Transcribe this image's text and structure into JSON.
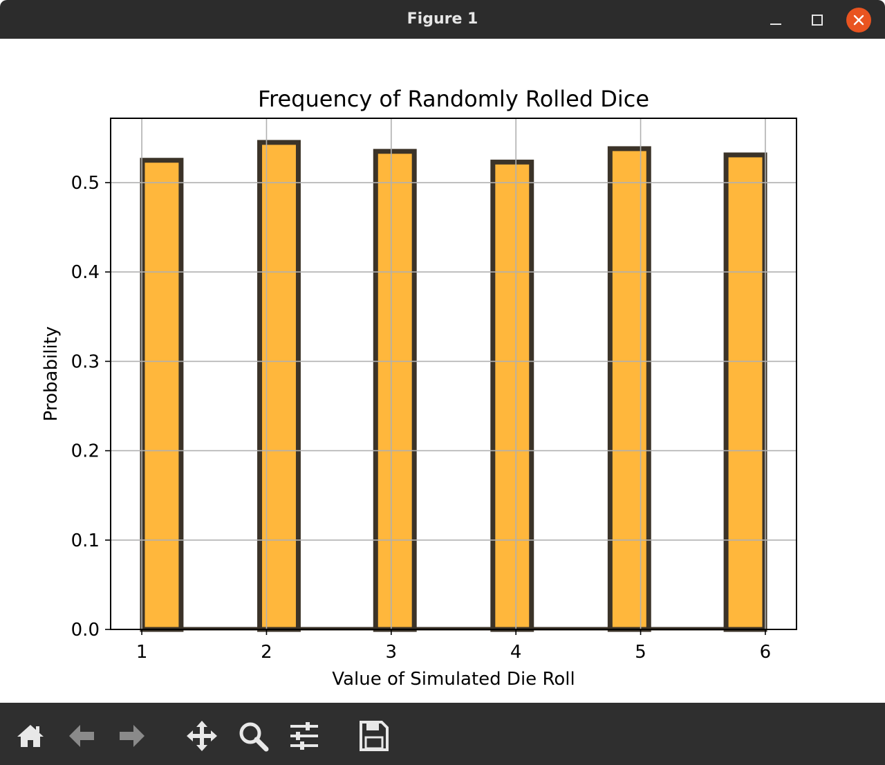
{
  "window": {
    "title": "Figure 1"
  },
  "toolbar": {
    "buttons": [
      {
        "icon": "home-icon"
      },
      {
        "icon": "back-arrow-icon"
      },
      {
        "icon": "forward-arrow-icon"
      },
      {
        "icon": "pan-move-icon"
      },
      {
        "icon": "zoom-magnifier-icon"
      },
      {
        "icon": "configure-subplots-icon"
      },
      {
        "icon": "save-floppy-icon"
      }
    ]
  },
  "colors": {
    "bar_fill": "#ffb73c",
    "bar_edge": "#3b3328",
    "grid": "#b0b0b0",
    "titlebar": "#2c2c2c",
    "toolbar": "#2f2f2f",
    "close_button": "#e95420"
  },
  "chart_data": {
    "type": "bar",
    "title": "Frequency of Randomly Rolled Dice",
    "xlabel": "Value of Simulated Die Roll",
    "ylabel": "Probability",
    "x": [
      1.16,
      2.1,
      3.03,
      3.97,
      4.91,
      5.84
    ],
    "values": [
      0.525,
      0.545,
      0.535,
      0.523,
      0.538,
      0.531
    ],
    "bin_width": 0.31,
    "xlim": [
      0.75,
      6.25
    ],
    "ylim": [
      0.0,
      0.572
    ],
    "xticks": [
      "1",
      "2",
      "3",
      "4",
      "5",
      "6"
    ],
    "yticks": [
      "0.0",
      "0.1",
      "0.2",
      "0.3",
      "0.4",
      "0.5"
    ],
    "grid": true
  }
}
